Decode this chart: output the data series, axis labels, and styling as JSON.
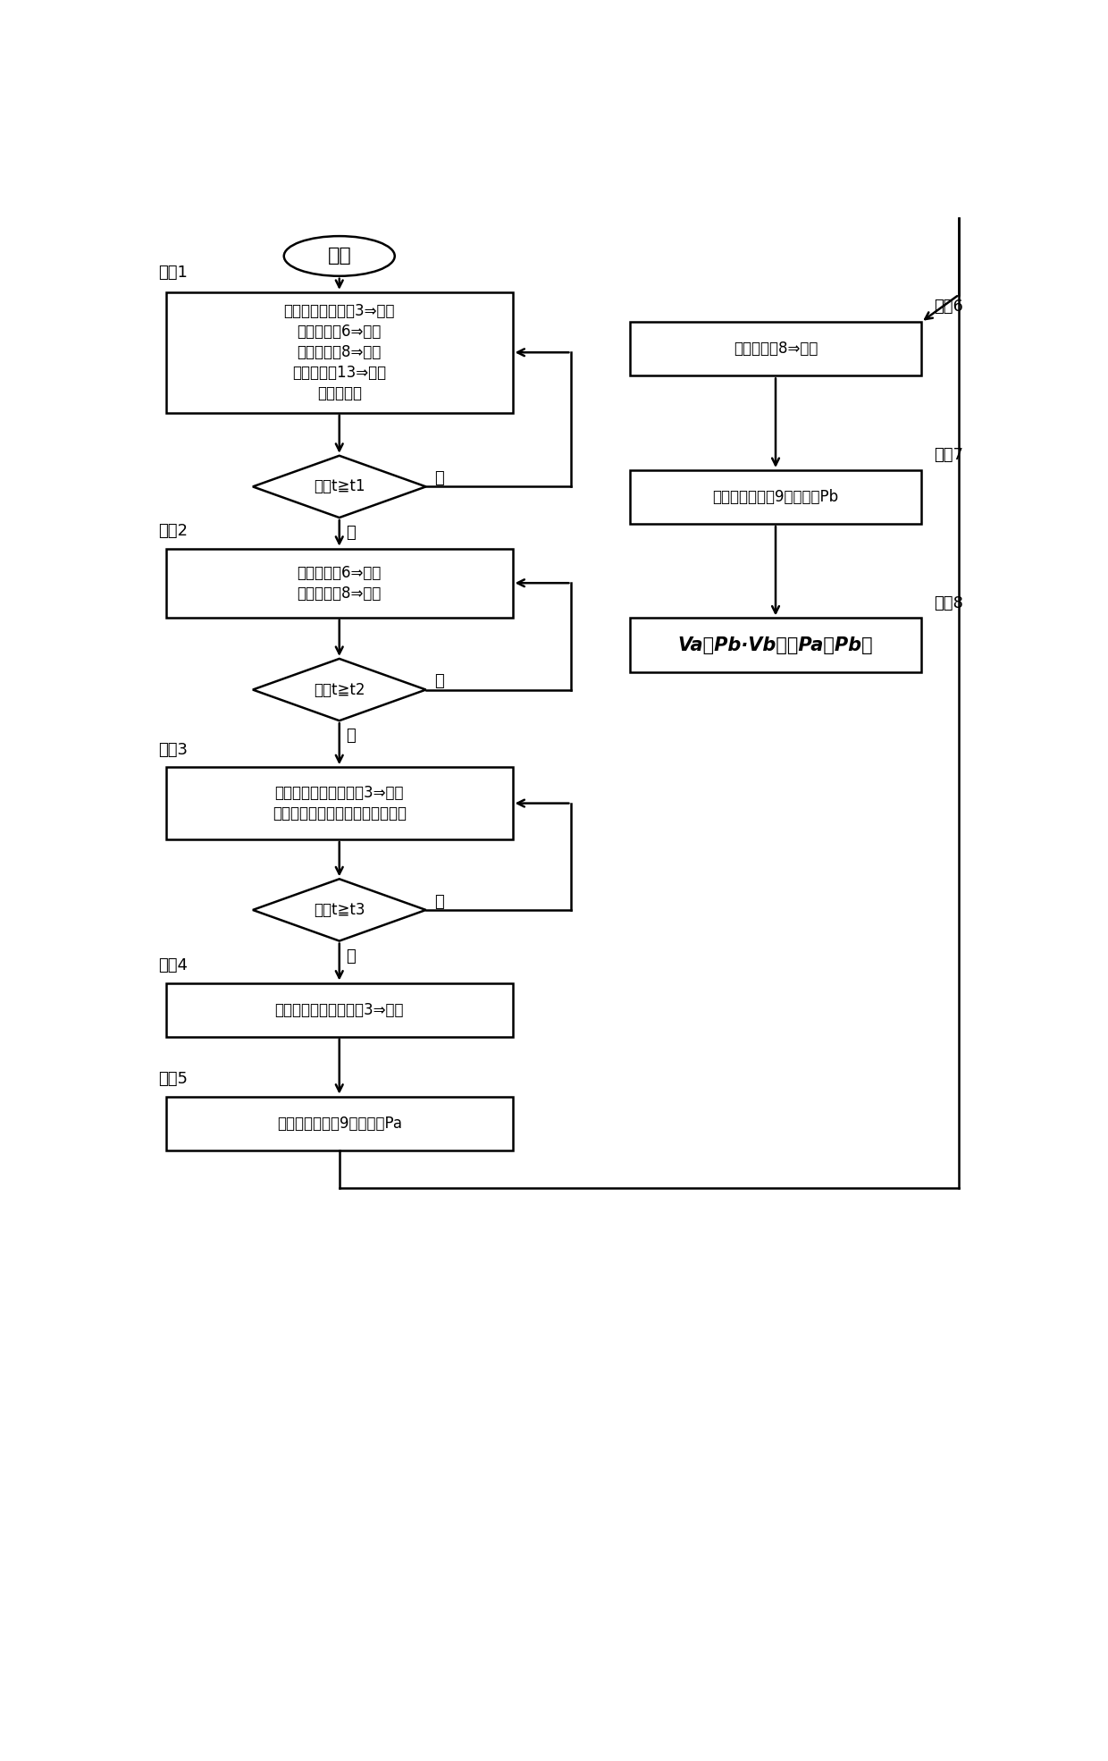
{
  "bg_color": "#ffffff",
  "line_color": "#000000",
  "text_color": "#000000",
  "font_size_main": 14,
  "font_size_step": 13,
  "start_label": "启动",
  "step1_label": "步骤1",
  "step1_lines": [
    "所有的第一隔断阀3⇒关闭",
    "第二隔断阀6⇒打开",
    "第三隔断阀8⇒打开",
    "第四隔断阀13⇒打开",
    "实施抽真空"
  ],
  "diamond1_text": "时间t≧t1",
  "no1_label": "否",
  "yes1_label": "是",
  "step2_label": "步骤2",
  "step2_lines": [
    "第二隔断阀6⇒关闭",
    "第三隔断阀8⇒关闭"
  ],
  "diamond2_text": "时间t≧t2",
  "no2_label": "否",
  "yes2_label": "是",
  "step3_label": "步骤3",
  "step3_lines": [
    "特定的一个第一隔断阀3⇒打开",
    "以设定流量从流量控制器流通气体"
  ],
  "diamond3_text": "时间t≧t3",
  "no3_label": "否",
  "yes3_label": "是",
  "step4_label": "步骤4",
  "step4_lines": [
    "上述特定的第一隔断阀3⇒关闭"
  ],
  "step5_label": "步骤5",
  "step5_lines": [
    "通过压力检测器9检测压力Pa"
  ],
  "step6_label": "步骤6",
  "step6_lines": [
    "第三隔断阀8⇒打开"
  ],
  "step7_label": "步骤7",
  "step7_lines": [
    "通过压力检测器9检测压力Pb"
  ],
  "step8_label": "步骤8",
  "step8_lines": [
    "Va＝Pb·Vb／（Pa－Pb）"
  ]
}
